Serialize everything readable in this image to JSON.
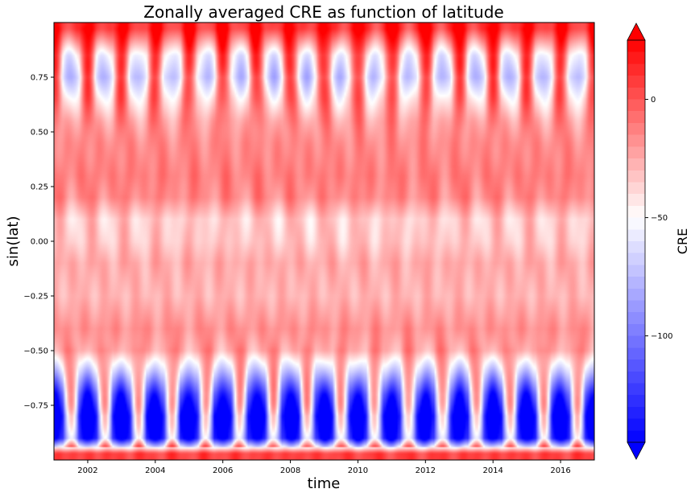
{
  "chart_data": {
    "type": "heatmap",
    "title": "Zonally averaged CRE as function of latitude",
    "xlabel": "time",
    "ylabel": "sin(lat)",
    "xlim": [
      2001.0,
      2017.0
    ],
    "ylim": [
      -1.0,
      1.0
    ],
    "x_ticks": [
      2002,
      2004,
      2006,
      2008,
      2010,
      2012,
      2014,
      2016
    ],
    "x_tick_labels": [
      "2002",
      "2004",
      "2006",
      "2008",
      "2010",
      "2012",
      "2014",
      "2016"
    ],
    "y_ticks": [
      -0.75,
      -0.5,
      -0.25,
      0.0,
      0.25,
      0.5,
      0.75
    ],
    "y_tick_labels": [
      "−0.75",
      "−0.50",
      "−0.25",
      "0.00",
      "0.25",
      "0.50",
      "0.75"
    ],
    "colorbar": {
      "label": "CRE",
      "colormap": "bwr",
      "range": [
        -145,
        25
      ],
      "extend": "both",
      "ticks": [
        0,
        -50,
        -100
      ],
      "tick_labels": [
        "0",
        "−50",
        "−100"
      ],
      "low_color": "#0000ff",
      "mid_color": "#ffffff",
      "high_color": "#ff0000"
    },
    "latitude_profile": [
      {
        "y": -0.97,
        "cre": 5
      },
      {
        "y": -0.9,
        "cre": -130
      },
      {
        "y": -0.8,
        "cre": -140
      },
      {
        "y": -0.7,
        "cre": -110
      },
      {
        "y": -0.6,
        "cre": -65
      },
      {
        "y": -0.5,
        "cre": -25
      },
      {
        "y": -0.4,
        "cre": -18
      },
      {
        "y": -0.25,
        "cre": -28
      },
      {
        "y": -0.1,
        "cre": -25
      },
      {
        "y": 0.0,
        "cre": -33
      },
      {
        "y": 0.1,
        "cre": -35
      },
      {
        "y": 0.2,
        "cre": -15
      },
      {
        "y": 0.3,
        "cre": -12
      },
      {
        "y": 0.45,
        "cre": -16
      },
      {
        "y": 0.55,
        "cre": -22
      },
      {
        "y": 0.65,
        "cre": -35
      },
      {
        "y": 0.75,
        "cre": -55
      },
      {
        "y": 0.85,
        "cre": -40
      },
      {
        "y": 0.97,
        "cre": 10
      }
    ],
    "seasonal_cycle": "annual; southern high-latitude minimum near December-January, northern high-latitude minimum near June-July"
  }
}
